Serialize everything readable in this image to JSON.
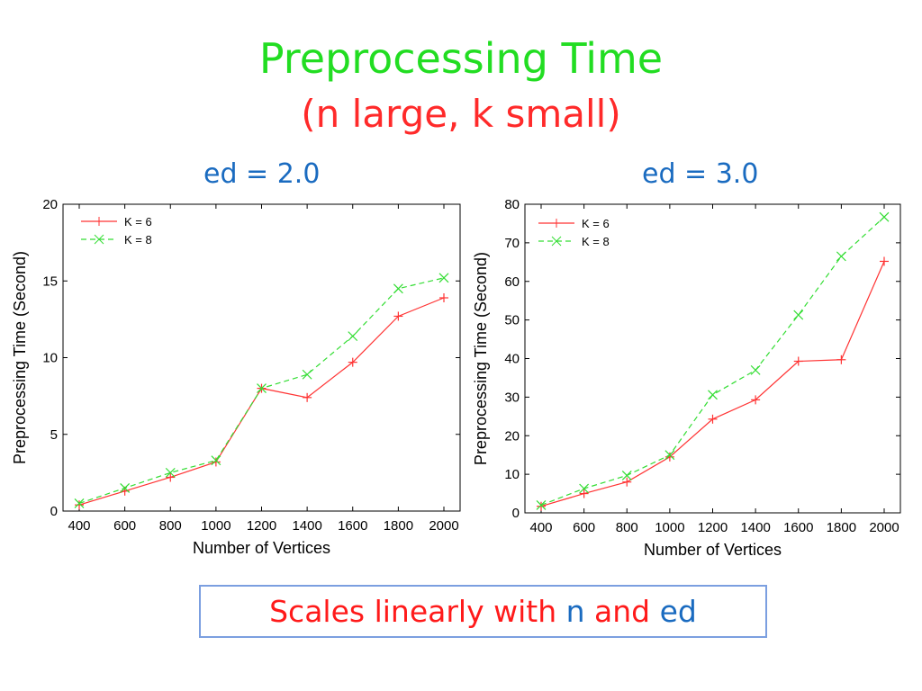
{
  "title": {
    "line1": "Preprocessing Time",
    "line2": "(n large, k small)"
  },
  "colors": {
    "title1": "#22dd22",
    "title2": "#ff2a2a",
    "subtitle": "#1a6bc0",
    "series_k6": "#ff3333",
    "series_k8": "#33dd33",
    "callout_border": "#7b9fe0"
  },
  "chart_data": [
    {
      "type": "line",
      "title": "ed = 2.0",
      "xlabel": "Number of Vertices",
      "ylabel": "Preprocessing Time (Second)",
      "x": [
        400,
        600,
        800,
        1000,
        1200,
        1400,
        1600,
        1800,
        2000
      ],
      "xticks": [
        "400",
        "600",
        "800",
        "1000",
        "1200",
        "1400",
        "1600",
        "1800",
        "2000"
      ],
      "ylim": [
        0,
        20
      ],
      "yticks": [
        "0",
        "5",
        "10",
        "15",
        "20"
      ],
      "legend_position": "top-left",
      "series": [
        {
          "name": "K = 6",
          "values": [
            0.4,
            1.3,
            2.2,
            3.2,
            8.0,
            7.4,
            9.7,
            12.7,
            13.9
          ]
        },
        {
          "name": "K = 8",
          "values": [
            0.5,
            1.5,
            2.5,
            3.3,
            8.0,
            8.9,
            11.4,
            14.5,
            15.2
          ]
        }
      ]
    },
    {
      "type": "line",
      "title": "ed = 3.0",
      "xlabel": "Number of Vertices",
      "ylabel": "Preprocessing Time (Second)",
      "x": [
        400,
        600,
        800,
        1000,
        1200,
        1400,
        1600,
        1800,
        2000
      ],
      "xticks": [
        "400",
        "600",
        "800",
        "1000",
        "1200",
        "1400",
        "1600",
        "1800",
        "2000"
      ],
      "ylim": [
        0,
        80
      ],
      "yticks": [
        "0",
        "10",
        "20",
        "30",
        "40",
        "50",
        "60",
        "70",
        "80"
      ],
      "legend_position": "top-left",
      "series": [
        {
          "name": "K = 6",
          "values": [
            1.7,
            5.0,
            8.0,
            14.5,
            24.3,
            29.3,
            39.3,
            39.7,
            65.2
          ]
        },
        {
          "name": "K = 8",
          "values": [
            2.0,
            6.3,
            9.7,
            15.0,
            30.6,
            37.0,
            51.3,
            66.5,
            76.7
          ]
        }
      ]
    }
  ],
  "callout": {
    "part1": "Scales linearly with ",
    "part2": "n",
    "part3": " and ",
    "part4": "ed"
  }
}
